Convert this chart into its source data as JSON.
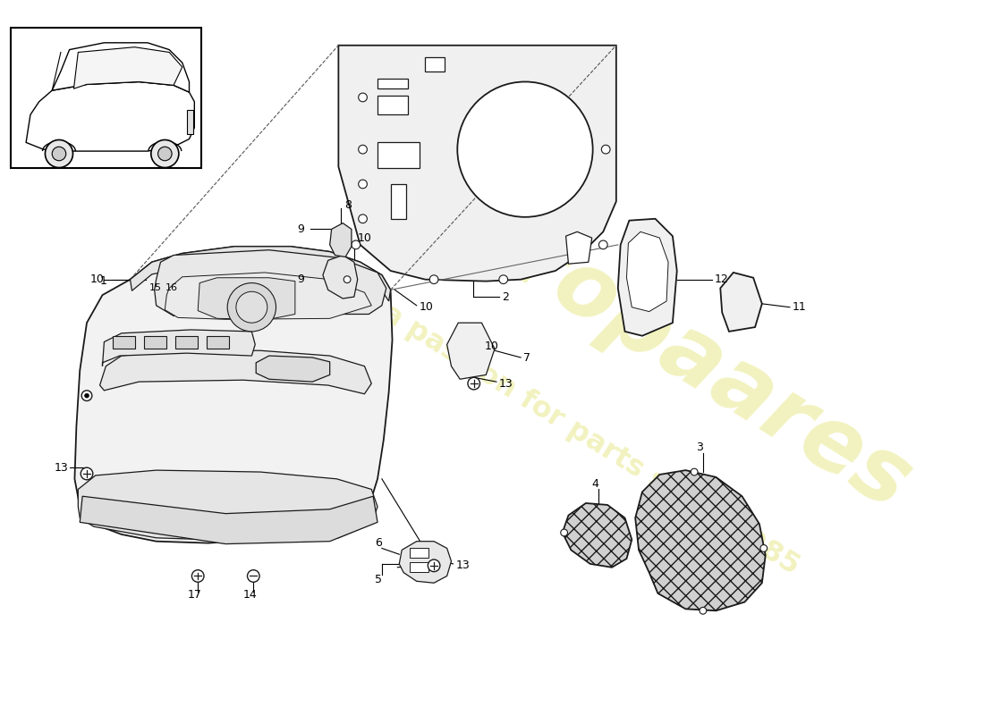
{
  "bg_color": "#ffffff",
  "line_color": "#1a1a1a",
  "wm_color1": "#cccc00",
  "wm_color2": "#cccc00",
  "wm_text1": "europaares",
  "wm_text2": "a passion for parts since 1985",
  "panel_fill": "#f0f0f0",
  "panel_edge": "#1a1a1a",
  "grille_fill": "#d0d0d0",
  "cut_fill": "#ffffff",
  "label_fs": 9,
  "lw_main": 1.3,
  "lw_sub": 0.9,
  "lw_leader": 0.8
}
